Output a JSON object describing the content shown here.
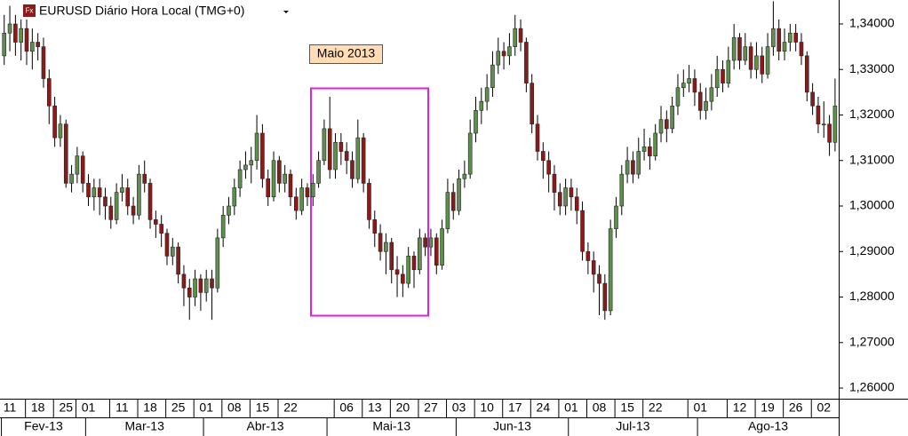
{
  "chart_data": {
    "type": "candlestick",
    "title": "EURUSD Diário Hora Local (TMG+0)",
    "icon_label": "Fx",
    "annotation": "Maio 2013",
    "up_color": "#5f8f4f",
    "down_color": "#8b1a1a",
    "ylim": [
      1.25766,
      1.34527
    ],
    "yticks": [
      {
        "value": 1.26,
        "label": "1,26000"
      },
      {
        "value": 1.27,
        "label": "1,27000"
      },
      {
        "value": 1.28,
        "label": "1,28000"
      },
      {
        "value": 1.29,
        "label": "1,29000"
      },
      {
        "value": 1.3,
        "label": "1,30000"
      },
      {
        "value": 1.31,
        "label": "1,31000"
      },
      {
        "value": 1.32,
        "label": "1,32000"
      },
      {
        "value": 1.33,
        "label": "1,33000"
      },
      {
        "value": 1.34,
        "label": "1,34000"
      }
    ],
    "xlim": [
      -0.75,
      148.65
    ],
    "xticks": [
      {
        "value": 1,
        "label": "11"
      },
      {
        "value": 6,
        "label": "18"
      },
      {
        "value": 11,
        "label": "25"
      },
      {
        "value": 15,
        "label": "01"
      },
      {
        "value": 21,
        "label": "11"
      },
      {
        "value": 26,
        "label": "18"
      },
      {
        "value": 31,
        "label": "25"
      },
      {
        "value": 36,
        "label": "01"
      },
      {
        "value": 41,
        "label": "08"
      },
      {
        "value": 46,
        "label": "15"
      },
      {
        "value": 51,
        "label": "22"
      },
      {
        "value": 61,
        "label": "06"
      },
      {
        "value": 66,
        "label": "13"
      },
      {
        "value": 71,
        "label": "20"
      },
      {
        "value": 76,
        "label": "27"
      },
      {
        "value": 81,
        "label": "03"
      },
      {
        "value": 86,
        "label": "10"
      },
      {
        "value": 91,
        "label": "17"
      },
      {
        "value": 96,
        "label": "24"
      },
      {
        "value": 101,
        "label": "01"
      },
      {
        "value": 106,
        "label": "08"
      },
      {
        "value": 111,
        "label": "15"
      },
      {
        "value": 116,
        "label": "22"
      },
      {
        "value": 124,
        "label": "01"
      },
      {
        "value": 131,
        "label": "12"
      },
      {
        "value": 136,
        "label": "19"
      },
      {
        "value": 141,
        "label": "26"
      },
      {
        "value": 146,
        "label": "02"
      }
    ],
    "month_ticks": [
      {
        "value": 0,
        "label": "Fev-13"
      },
      {
        "value": 15,
        "label": "Mar-13"
      },
      {
        "value": 36,
        "label": "Abr-13"
      },
      {
        "value": 58,
        "label": "Mai-13"
      },
      {
        "value": 81,
        "label": "Jun-13"
      },
      {
        "value": 101,
        "label": "Jul-13"
      },
      {
        "value": 124,
        "label": "Ago-13"
      }
    ],
    "ohlc": [
      [
        1.333,
        1.342,
        1.331,
        1.338
      ],
      [
        1.338,
        1.344,
        1.334,
        1.34
      ],
      [
        1.34,
        1.342,
        1.333,
        1.336
      ],
      [
        1.336,
        1.341,
        1.332,
        1.339
      ],
      [
        1.339,
        1.341,
        1.331,
        1.334
      ],
      [
        1.334,
        1.339,
        1.33,
        1.336
      ],
      [
        1.336,
        1.338,
        1.332,
        1.335
      ],
      [
        1.335,
        1.337,
        1.326,
        1.328
      ],
      [
        1.328,
        1.33,
        1.318,
        1.322
      ],
      [
        1.322,
        1.324,
        1.313,
        1.315
      ],
      [
        1.315,
        1.32,
        1.313,
        1.318
      ],
      [
        1.318,
        1.319,
        1.304,
        1.305
      ],
      [
        1.305,
        1.309,
        1.303,
        1.307
      ],
      [
        1.307,
        1.313,
        1.305,
        1.311
      ],
      [
        1.311,
        1.312,
        1.303,
        1.305
      ],
      [
        1.305,
        1.307,
        1.3,
        1.302
      ],
      [
        1.302,
        1.306,
        1.299,
        1.304
      ],
      [
        1.304,
        1.306,
        1.298,
        1.302
      ],
      [
        1.302,
        1.304,
        1.297,
        1.3
      ],
      [
        1.3,
        1.302,
        1.295,
        1.297
      ],
      [
        1.297,
        1.305,
        1.296,
        1.303
      ],
      [
        1.303,
        1.307,
        1.301,
        1.304
      ],
      [
        1.304,
        1.306,
        1.298,
        1.3
      ],
      [
        1.3,
        1.302,
        1.296,
        1.298
      ],
      [
        1.298,
        1.309,
        1.297,
        1.307
      ],
      [
        1.307,
        1.31,
        1.303,
        1.305
      ],
      [
        1.305,
        1.306,
        1.295,
        1.297
      ],
      [
        1.297,
        1.299,
        1.293,
        1.296
      ],
      [
        1.296,
        1.298,
        1.291,
        1.294
      ],
      [
        1.294,
        1.295,
        1.287,
        1.289
      ],
      [
        1.289,
        1.293,
        1.287,
        1.291
      ],
      [
        1.291,
        1.292,
        1.283,
        1.285
      ],
      [
        1.285,
        1.287,
        1.278,
        1.282
      ],
      [
        1.282,
        1.284,
        1.275,
        1.28
      ],
      [
        1.28,
        1.286,
        1.278,
        1.284
      ],
      [
        1.284,
        1.285,
        1.277,
        1.281
      ],
      [
        1.281,
        1.286,
        1.279,
        1.284
      ],
      [
        1.284,
        1.286,
        1.275,
        1.282
      ],
      [
        1.282,
        1.295,
        1.281,
        1.293
      ],
      [
        1.293,
        1.3,
        1.291,
        1.298
      ],
      [
        1.298,
        1.302,
        1.296,
        1.3
      ],
      [
        1.3,
        1.306,
        1.298,
        1.304
      ],
      [
        1.304,
        1.31,
        1.302,
        1.308
      ],
      [
        1.308,
        1.312,
        1.306,
        1.309
      ],
      [
        1.309,
        1.313,
        1.305,
        1.31
      ],
      [
        1.31,
        1.32,
        1.308,
        1.316
      ],
      [
        1.316,
        1.318,
        1.304,
        1.306
      ],
      [
        1.306,
        1.308,
        1.3,
        1.302
      ],
      [
        1.302,
        1.312,
        1.301,
        1.31
      ],
      [
        1.31,
        1.311,
        1.303,
        1.305
      ],
      [
        1.305,
        1.309,
        1.303,
        1.307
      ],
      [
        1.307,
        1.308,
        1.3,
        1.302
      ],
      [
        1.302,
        1.304,
        1.297,
        1.299
      ],
      [
        1.299,
        1.306,
        1.298,
        1.304
      ],
      [
        1.304,
        1.305,
        1.3,
        1.302
      ],
      [
        1.302,
        1.307,
        1.3,
        1.305
      ],
      [
        1.305,
        1.312,
        1.304,
        1.31
      ],
      [
        1.31,
        1.319,
        1.309,
        1.317
      ],
      [
        1.317,
        1.324,
        1.306,
        1.308
      ],
      [
        1.308,
        1.316,
        1.306,
        1.314
      ],
      [
        1.314,
        1.316,
        1.309,
        1.312
      ],
      [
        1.312,
        1.314,
        1.307,
        1.31
      ],
      [
        1.31,
        1.312,
        1.304,
        1.306
      ],
      [
        1.306,
        1.319,
        1.305,
        1.315
      ],
      [
        1.315,
        1.316,
        1.303,
        1.305
      ],
      [
        1.305,
        1.306,
        1.295,
        1.297
      ],
      [
        1.297,
        1.299,
        1.291,
        1.294
      ],
      [
        1.294,
        1.296,
        1.288,
        1.29
      ],
      [
        1.29,
        1.294,
        1.285,
        1.292
      ],
      [
        1.292,
        1.293,
        1.283,
        1.286
      ],
      [
        1.286,
        1.289,
        1.28,
        1.285
      ],
      [
        1.285,
        1.287,
        1.28,
        1.283
      ],
      [
        1.283,
        1.291,
        1.282,
        1.289
      ],
      [
        1.289,
        1.29,
        1.282,
        1.286
      ],
      [
        1.286,
        1.295,
        1.285,
        1.293
      ],
      [
        1.293,
        1.294,
        1.289,
        1.291
      ],
      [
        1.291,
        1.295,
        1.289,
        1.293
      ],
      [
        1.293,
        1.294,
        1.285,
        1.287
      ],
      [
        1.287,
        1.297,
        1.286,
        1.295
      ],
      [
        1.295,
        1.306,
        1.294,
        1.303
      ],
      [
        1.303,
        1.305,
        1.297,
        1.299
      ],
      [
        1.299,
        1.308,
        1.298,
        1.306
      ],
      [
        1.306,
        1.31,
        1.304,
        1.307
      ],
      [
        1.307,
        1.319,
        1.306,
        1.316
      ],
      [
        1.316,
        1.324,
        1.314,
        1.321
      ],
      [
        1.321,
        1.326,
        1.318,
        1.323
      ],
      [
        1.323,
        1.329,
        1.321,
        1.326
      ],
      [
        1.326,
        1.334,
        1.324,
        1.331
      ],
      [
        1.331,
        1.337,
        1.329,
        1.334
      ],
      [
        1.334,
        1.336,
        1.33,
        1.333
      ],
      [
        1.333,
        1.338,
        1.331,
        1.335
      ],
      [
        1.335,
        1.342,
        1.333,
        1.339
      ],
      [
        1.339,
        1.341,
        1.334,
        1.336
      ],
      [
        1.336,
        1.337,
        1.325,
        1.327
      ],
      [
        1.327,
        1.329,
        1.316,
        1.318
      ],
      [
        1.318,
        1.32,
        1.31,
        1.312
      ],
      [
        1.312,
        1.314,
        1.306,
        1.31
      ],
      [
        1.31,
        1.312,
        1.303,
        1.307
      ],
      [
        1.307,
        1.309,
        1.299,
        1.303
      ],
      [
        1.303,
        1.305,
        1.298,
        1.3
      ],
      [
        1.3,
        1.306,
        1.298,
        1.304
      ],
      [
        1.304,
        1.306,
        1.299,
        1.302
      ],
      [
        1.302,
        1.304,
        1.296,
        1.299
      ],
      [
        1.299,
        1.301,
        1.288,
        1.29
      ],
      [
        1.29,
        1.292,
        1.285,
        1.288
      ],
      [
        1.288,
        1.29,
        1.281,
        1.285
      ],
      [
        1.285,
        1.287,
        1.276,
        1.283
      ],
      [
        1.283,
        1.285,
        1.275,
        1.277
      ],
      [
        1.277,
        1.297,
        1.276,
        1.295
      ],
      [
        1.295,
        1.302,
        1.293,
        1.3
      ],
      [
        1.3,
        1.309,
        1.298,
        1.307
      ],
      [
        1.307,
        1.313,
        1.305,
        1.31
      ],
      [
        1.31,
        1.312,
        1.305,
        1.307
      ],
      [
        1.307,
        1.315,
        1.306,
        1.312
      ],
      [
        1.312,
        1.317,
        1.31,
        1.313
      ],
      [
        1.313,
        1.315,
        1.308,
        1.311
      ],
      [
        1.311,
        1.318,
        1.31,
        1.316
      ],
      [
        1.316,
        1.322,
        1.314,
        1.319
      ],
      [
        1.319,
        1.321,
        1.314,
        1.317
      ],
      [
        1.317,
        1.324,
        1.316,
        1.322
      ],
      [
        1.322,
        1.329,
        1.32,
        1.326
      ],
      [
        1.326,
        1.33,
        1.324,
        1.327
      ],
      [
        1.327,
        1.331,
        1.325,
        1.328
      ],
      [
        1.328,
        1.33,
        1.322,
        1.325
      ],
      [
        1.325,
        1.327,
        1.319,
        1.321
      ],
      [
        1.321,
        1.326,
        1.319,
        1.323
      ],
      [
        1.323,
        1.329,
        1.321,
        1.326
      ],
      [
        1.326,
        1.333,
        1.324,
        1.33
      ],
      [
        1.33,
        1.332,
        1.325,
        1.327
      ],
      [
        1.327,
        1.335,
        1.326,
        1.332
      ],
      [
        1.332,
        1.34,
        1.33,
        1.337
      ],
      [
        1.337,
        1.338,
        1.33,
        1.332
      ],
      [
        1.332,
        1.338,
        1.331,
        1.335
      ],
      [
        1.335,
        1.336,
        1.328,
        1.33
      ],
      [
        1.33,
        1.336,
        1.328,
        1.333
      ],
      [
        1.333,
        1.335,
        1.327,
        1.329
      ],
      [
        1.329,
        1.338,
        1.328,
        1.335
      ],
      [
        1.335,
        1.345,
        1.333,
        1.339
      ],
      [
        1.339,
        1.341,
        1.332,
        1.334
      ],
      [
        1.334,
        1.339,
        1.332,
        1.336
      ],
      [
        1.336,
        1.34,
        1.334,
        1.338
      ],
      [
        1.338,
        1.34,
        1.334,
        1.336
      ],
      [
        1.336,
        1.338,
        1.331,
        1.333
      ],
      [
        1.333,
        1.334,
        1.323,
        1.325
      ],
      [
        1.325,
        1.327,
        1.32,
        1.322
      ],
      [
        1.322,
        1.324,
        1.316,
        1.318
      ],
      [
        1.318,
        1.323,
        1.315,
        1.318
      ],
      [
        1.318,
        1.32,
        1.311,
        1.314
      ],
      [
        1.314,
        1.328,
        1.312,
        1.322
      ]
    ]
  }
}
